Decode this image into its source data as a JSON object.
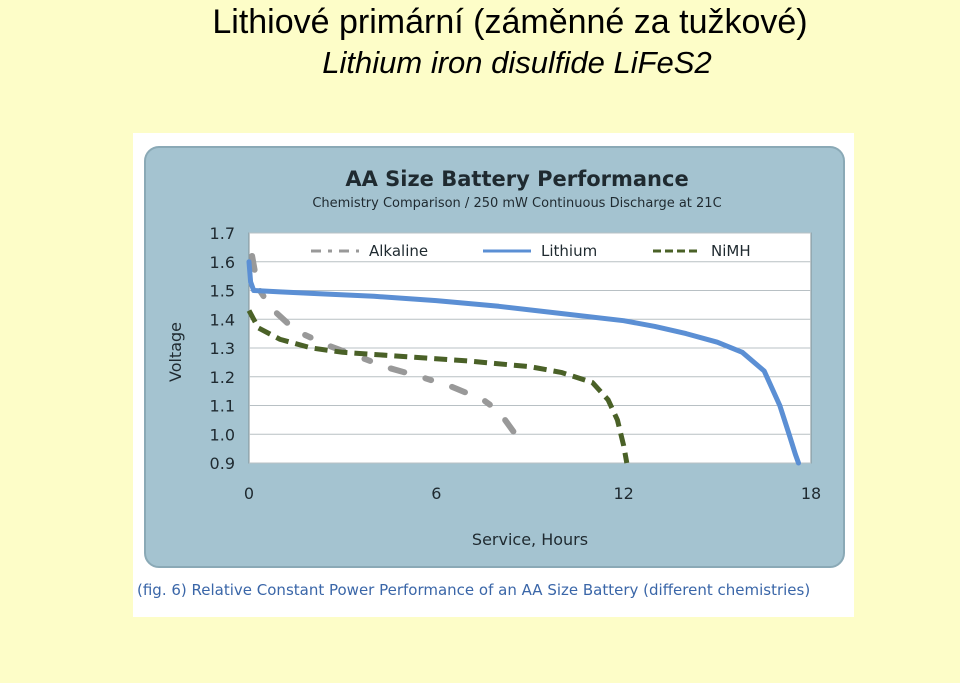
{
  "slide": {
    "title": "Lithiové primární (záměnné za tužkové)",
    "subtitle": "Lithium iron disulfide LiFeS2"
  },
  "figure": {
    "caption": "(fig. 6) Relative Constant Power Performance of an AA Size Battery (different chemistries)"
  },
  "colors": {
    "panel": "#a4c3d0",
    "plot_bg": "#ffffff",
    "alkaline": "#999999",
    "lithium": "#5b8fd4",
    "nimh": "#4a6127"
  },
  "chart_data": {
    "type": "line",
    "title": "AA Size Battery Performance",
    "subtitle": "Chemistry Comparison / 250 mW Continuous Discharge at 21C",
    "xlabel": "Service, Hours",
    "ylabel": "Voltage",
    "xlim": [
      0,
      18
    ],
    "ylim": [
      0.9,
      1.7
    ],
    "xticks": [
      "0",
      "6",
      "12",
      "18"
    ],
    "yticks": [
      "0.9",
      "1.0",
      "1.1",
      "1.2",
      "1.3",
      "1.4",
      "1.5",
      "1.6",
      "1.7"
    ],
    "grid": true,
    "legend_position": "top",
    "series": [
      {
        "name": "Alkaline",
        "style": "dash-dot",
        "x": [
          0.1,
          0.2,
          0.35,
          0.7,
          1.5,
          2.5,
          3.5,
          4.5,
          5.5,
          6.5,
          7.5,
          8.0,
          8.7
        ],
        "y": [
          1.62,
          1.56,
          1.5,
          1.44,
          1.36,
          1.31,
          1.27,
          1.23,
          1.2,
          1.165,
          1.12,
          1.08,
          0.975
        ]
      },
      {
        "name": "Lithium",
        "style": "solid",
        "x": [
          0,
          0.05,
          0.15,
          1,
          2,
          4,
          6,
          8,
          10,
          12,
          13,
          14,
          15,
          15.8,
          16.5,
          17,
          17.3,
          17.5,
          17.6
        ],
        "y": [
          1.6,
          1.53,
          1.5,
          1.495,
          1.49,
          1.48,
          1.465,
          1.445,
          1.42,
          1.395,
          1.375,
          1.35,
          1.32,
          1.285,
          1.22,
          1.1,
          1.0,
          0.93,
          0.9
        ]
      },
      {
        "name": "NiMH",
        "style": "dashed",
        "x": [
          0,
          0.3,
          1,
          2,
          3,
          5,
          7,
          9,
          10,
          11,
          11.5,
          11.8,
          12.0,
          12.1
        ],
        "y": [
          1.43,
          1.37,
          1.33,
          1.3,
          1.285,
          1.27,
          1.255,
          1.235,
          1.215,
          1.18,
          1.12,
          1.05,
          0.96,
          0.9
        ]
      }
    ]
  }
}
